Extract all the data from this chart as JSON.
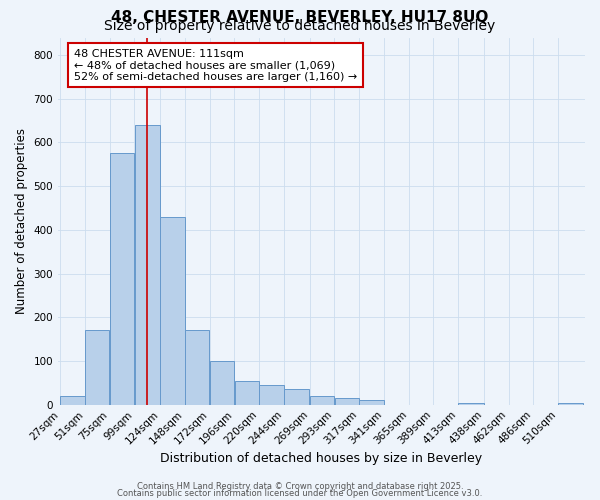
{
  "title1": "48, CHESTER AVENUE, BEVERLEY, HU17 8UQ",
  "title2": "Size of property relative to detached houses in Beverley",
  "xlabel": "Distribution of detached houses by size in Beverley",
  "ylabel": "Number of detached properties",
  "bin_left_edges": [
    27,
    51,
    75,
    99,
    124,
    148,
    172,
    196,
    220,
    244,
    269,
    293,
    317,
    341,
    365,
    389,
    413,
    438,
    462,
    486,
    510
  ],
  "bar_heights": [
    20,
    170,
    575,
    640,
    430,
    170,
    100,
    55,
    45,
    35,
    20,
    15,
    10,
    0,
    0,
    0,
    5,
    0,
    0,
    0,
    5
  ],
  "bar_color": "#b8d0ea",
  "bar_edgecolor": "#6699cc",
  "bar_linewidth": 0.7,
  "vline_x": 111,
  "vline_color": "#cc0000",
  "vline_linewidth": 1.2,
  "annotation_title": "48 CHESTER AVENUE: 111sqm",
  "annotation_line1": "← 48% of detached houses are smaller (1,069)",
  "annotation_line2": "52% of semi-detached houses are larger (1,160) →",
  "annotation_box_edgecolor": "#cc0000",
  "annotation_fill": "#ffffff",
  "ylim": [
    0,
    840
  ],
  "yticks": [
    0,
    100,
    200,
    300,
    400,
    500,
    600,
    700,
    800
  ],
  "grid_color": "#ccddee",
  "plot_bg_color": "#eef4fb",
  "fig_bg_color": "#eef4fb",
  "footer_line1": "Contains HM Land Registry data © Crown copyright and database right 2025.",
  "footer_line2": "Contains public sector information licensed under the Open Government Licence v3.0.",
  "title1_fontsize": 11,
  "title2_fontsize": 10,
  "xlabel_fontsize": 9,
  "ylabel_fontsize": 8.5,
  "tick_fontsize": 7.5,
  "annotation_fontsize": 8,
  "footer_fontsize": 6
}
